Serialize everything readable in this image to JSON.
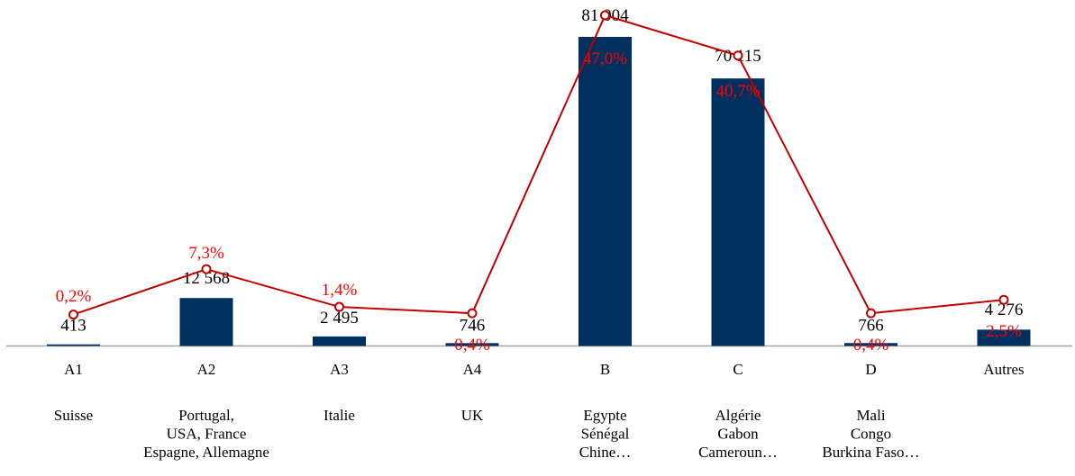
{
  "chart_data": {
    "type": "bar",
    "categories": [
      "A1",
      "A2",
      "A3",
      "A4",
      "B",
      "C",
      "D",
      "Autres"
    ],
    "category_sublabels": [
      [
        "Suisse"
      ],
      [
        "Portugal,",
        "USA, France",
        "Espagne, Allemagne"
      ],
      [
        "Italie"
      ],
      [
        "UK"
      ],
      [
        "Egypte",
        "Sénégal",
        "Chine…"
      ],
      [
        "Algérie",
        "Gabon",
        "Cameroun…"
      ],
      [
        "Mali",
        "Congo",
        "Burkina Faso…"
      ],
      []
    ],
    "series": [
      {
        "type": "bar",
        "values": [
          413,
          12568,
          2495,
          746,
          81004,
          70115,
          766,
          4276
        ],
        "value_labels": [
          "413",
          "12 568",
          "2 495",
          "746",
          "81 004",
          "70 115",
          "766",
          "4 276"
        ],
        "color": "#00305f"
      },
      {
        "type": "line",
        "values": [
          0.2,
          7.3,
          1.4,
          0.4,
          47.0,
          40.7,
          0.4,
          2.5
        ],
        "value_labels": [
          "0,2%",
          "7,3%",
          "1,4%",
          "0,4%",
          "47,0%",
          "40,7%",
          "0,4%",
          "2,5%"
        ],
        "color": "#c00000",
        "label_color": "#ff0000"
      }
    ],
    "title": "",
    "xlabel": "",
    "ylabel": "",
    "ylim": [
      0,
      85000
    ],
    "grid": false,
    "legend": "none"
  }
}
